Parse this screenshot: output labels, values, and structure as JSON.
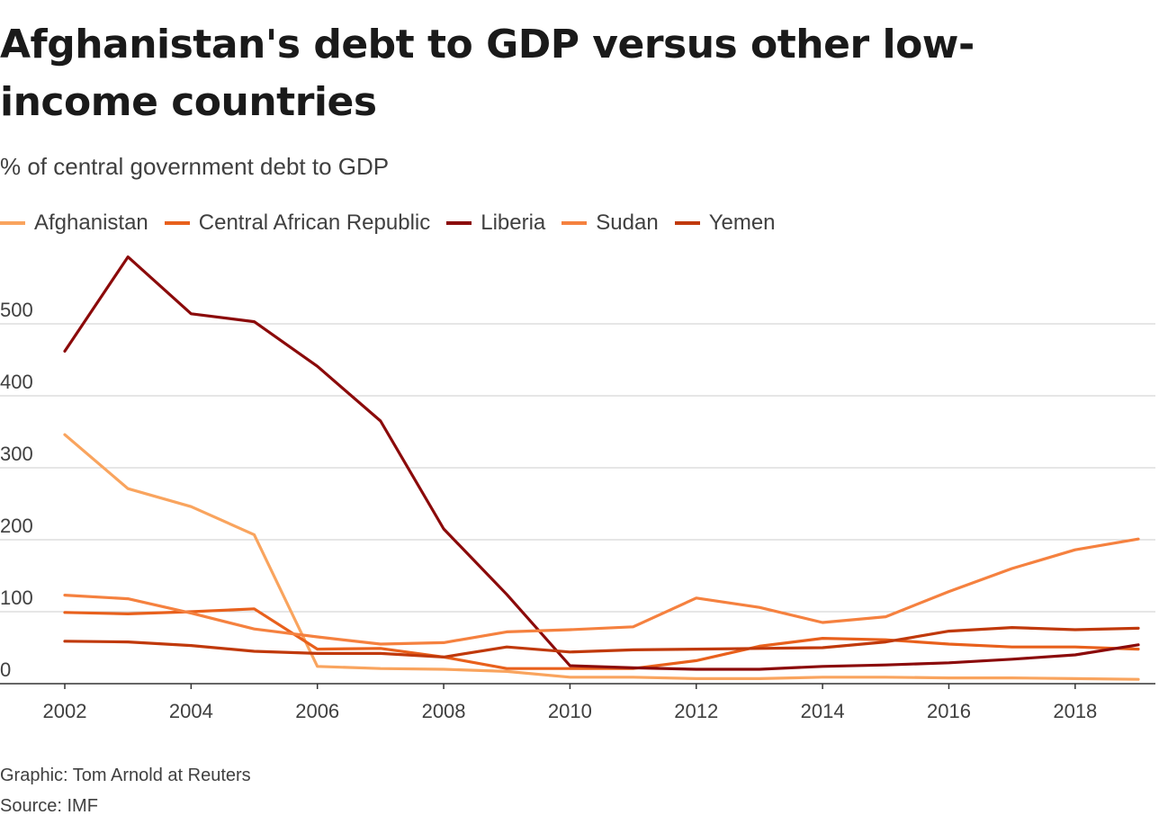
{
  "title": "Afghanistan's debt to GDP versus other low-income countries",
  "subtitle": "% of central government debt to GDP",
  "footer": {
    "credit": "Graphic: Tom Arnold at Reuters",
    "source": "Source: IMF"
  },
  "chart_data": {
    "type": "line",
    "title": "Afghanistan's debt to GDP versus other low-income countries",
    "subtitle": "% of central government debt to GDP",
    "xlabel": "",
    "ylabel": "",
    "x": [
      2002,
      2003,
      2004,
      2005,
      2006,
      2007,
      2008,
      2009,
      2010,
      2011,
      2012,
      2013,
      2014,
      2015,
      2016,
      2017,
      2018,
      2019
    ],
    "x_ticks": [
      "2002",
      "2004",
      "2006",
      "2008",
      "2010",
      "2012",
      "2014",
      "2016",
      "2018"
    ],
    "y_ticks": [
      "0",
      "100",
      "200",
      "300",
      "400",
      "500"
    ],
    "ylim": [
      0,
      600
    ],
    "xlim": [
      2002,
      2019
    ],
    "grid": true,
    "legend_position": "top-left",
    "series": [
      {
        "name": "Afghanistan",
        "color": "#f9a45e",
        "values": [
          346,
          271,
          246,
          207,
          24,
          21,
          20,
          17,
          9,
          9,
          7,
          7,
          9,
          9,
          8,
          8,
          7,
          6
        ]
      },
      {
        "name": "Central African Republic",
        "color": "#e8601c",
        "values": [
          99,
          97,
          100,
          104,
          48,
          49,
          37,
          21,
          21,
          21,
          32,
          52,
          63,
          61,
          55,
          51,
          51,
          48
        ]
      },
      {
        "name": "Liberia",
        "color": "#8b0a0a",
        "values": [
          462,
          593,
          514,
          503,
          441,
          365,
          215,
          124,
          25,
          22,
          20,
          20,
          24,
          26,
          29,
          34,
          40,
          54
        ]
      },
      {
        "name": "Sudan",
        "color": "#f5813f",
        "values": [
          123,
          118,
          98,
          76,
          65,
          55,
          57,
          72,
          75,
          79,
          119,
          106,
          85,
          93,
          128,
          160,
          186,
          201
        ]
      },
      {
        "name": "Yemen",
        "color": "#c0390b",
        "values": [
          59,
          58,
          53,
          45,
          42,
          42,
          37,
          51,
          44,
          47,
          48,
          49,
          50,
          58,
          73,
          78,
          75,
          77
        ]
      }
    ]
  }
}
